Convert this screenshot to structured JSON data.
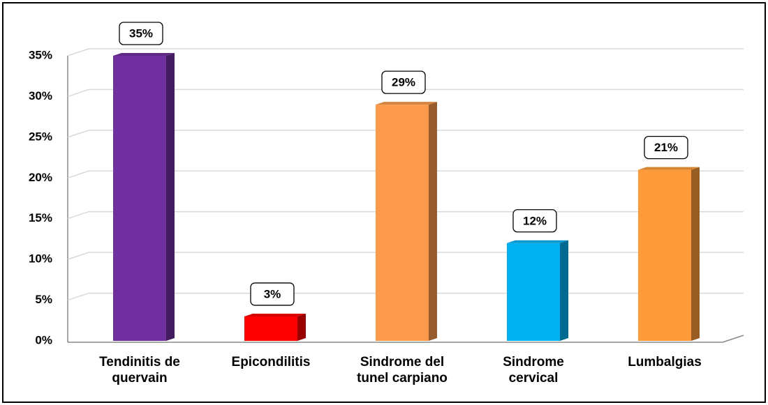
{
  "chart_data": {
    "type": "bar",
    "categories": [
      "Tendinitis de quervain",
      "Epicondilitis",
      "Sindrome del tunel carpiano",
      "Sindrome cervical",
      "Lumbalgias"
    ],
    "values": [
      35,
      3,
      29,
      12,
      21
    ],
    "value_labels": [
      "35%",
      "3%",
      "29%",
      "12%",
      "21%"
    ],
    "colors": [
      "#7030a0",
      "#ff0000",
      "#fb9a4b",
      "#00b0f0",
      "#fd9b3a"
    ],
    "ylim": [
      0,
      35
    ],
    "yticks": [
      {
        "value": 0,
        "label": "0%"
      },
      {
        "value": 5,
        "label": "5%"
      },
      {
        "value": 10,
        "label": "10%"
      },
      {
        "value": 15,
        "label": "15%"
      },
      {
        "value": 20,
        "label": "20%"
      },
      {
        "value": 25,
        "label": "25%"
      },
      {
        "value": 30,
        "label": "30%"
      },
      {
        "value": 35,
        "label": "35%"
      }
    ],
    "grid": true
  }
}
